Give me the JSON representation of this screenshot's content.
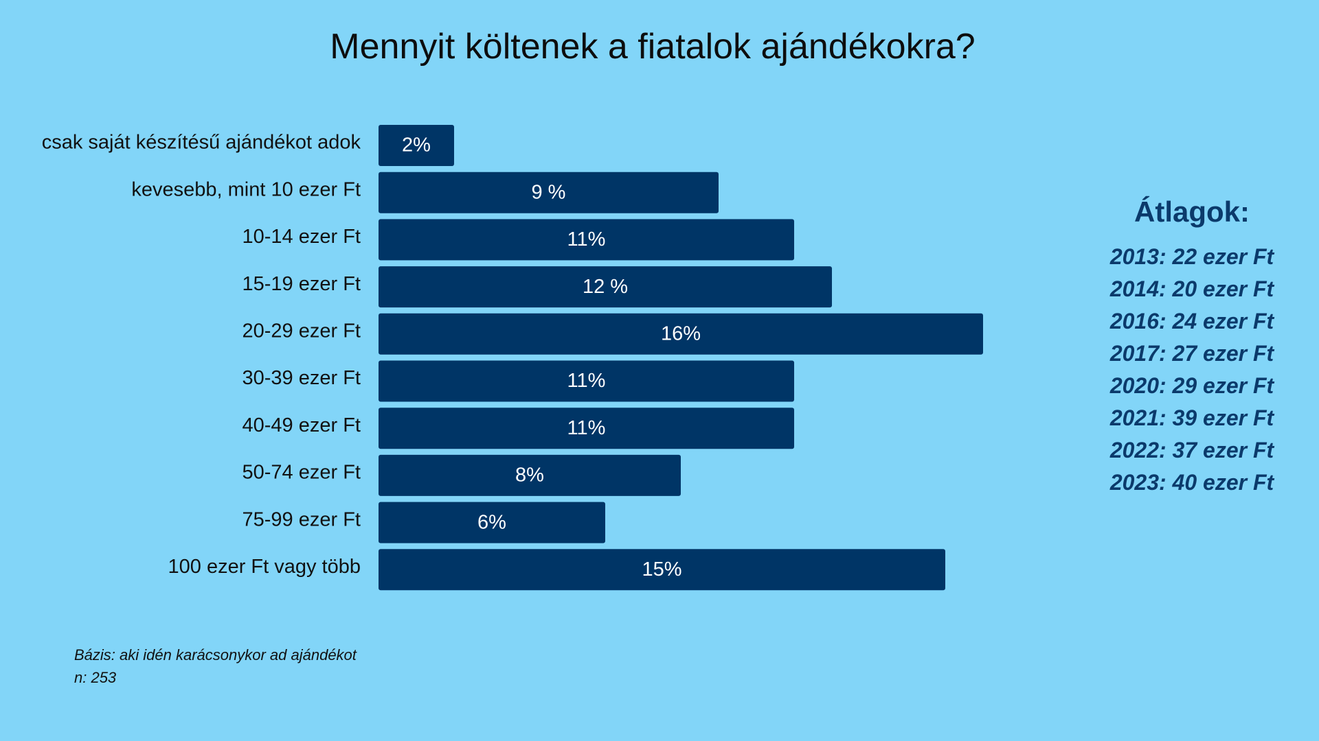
{
  "chart_data": {
    "type": "bar",
    "orientation": "horizontal",
    "title": "Mennyit költenek a fiatalok ajándékokra?",
    "categories": [
      "csak saját készítésű ajándékot adok",
      "kevesebb, mint 10 ezer Ft",
      "10-14 ezer Ft",
      "15-19 ezer Ft",
      "20-29 ezer Ft",
      "30-39 ezer Ft",
      "40-49 ezer Ft",
      "50-74 ezer Ft",
      "75-99 ezer Ft",
      "100 ezer Ft vagy több"
    ],
    "values": [
      2,
      9,
      11,
      12,
      16,
      11,
      11,
      8,
      6,
      15
    ],
    "data_labels": [
      "2%",
      "9 %",
      "11%",
      "12 %",
      "16%",
      "11%",
      "11%",
      "8%",
      "6%",
      "15%"
    ],
    "xlim": [
      0,
      16
    ],
    "grid": false,
    "bar_color": "#003566",
    "label_color": "#ffffff"
  },
  "averages": {
    "title": "Átlagok:",
    "items": [
      "2013: 22 ezer Ft",
      "2014: 20 ezer Ft",
      "2016: 24 ezer Ft",
      "2017: 27 ezer Ft",
      "2020: 29 ezer Ft",
      "2021: 39 ezer Ft",
      "2022: 37 ezer Ft",
      "2023: 40 ezer Ft"
    ]
  },
  "footnote": {
    "base": "Bázis: aki idén karácsonykor ad ajándékot",
    "n": "n: 253"
  },
  "colors": {
    "background": "#82d5f8",
    "accent": "#0b3a6b"
  }
}
